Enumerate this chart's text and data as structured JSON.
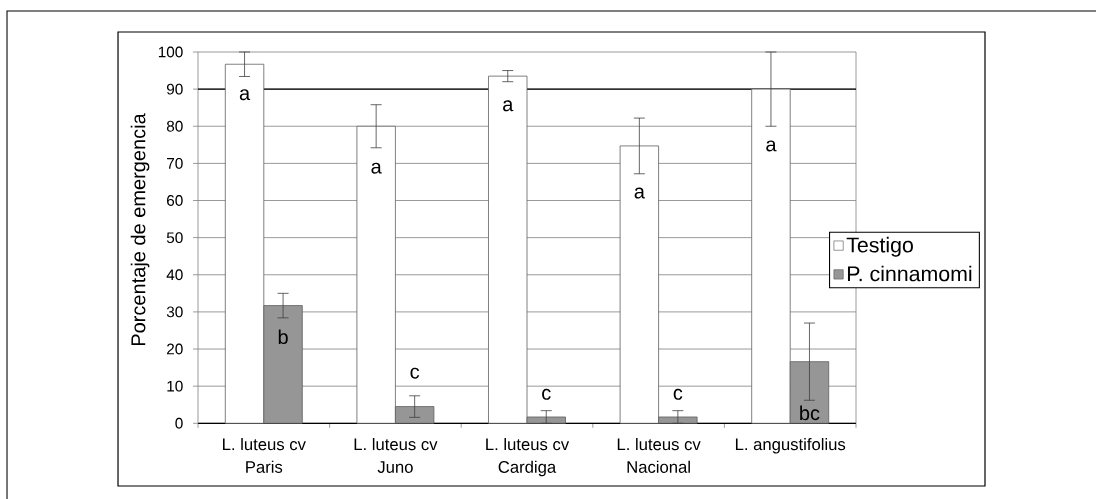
{
  "chart_data": {
    "type": "bar",
    "ylabel": "Porcentaje de emergencia",
    "categories": [
      "L. luteus cv Paris",
      "L. luteus cv Juno",
      "L. luteus cv Cardiga",
      "L. luteus cv Nacional",
      "L. angustifolius"
    ],
    "series": [
      {
        "name": "Testigo",
        "color": "#ffffff",
        "values": [
          96.7,
          80,
          93.5,
          74.7,
          90
        ],
        "errors": [
          3.3,
          5.8,
          1.5,
          7.5,
          10
        ]
      },
      {
        "name": "P. cinnamomi",
        "color": "#969696",
        "values": [
          31.7,
          4.5,
          1.7,
          1.7,
          16.6
        ],
        "errors": [
          3.3,
          2.9,
          1.7,
          1.7,
          10.4
        ]
      }
    ],
    "ylim": [
      0,
      100
    ],
    "yticks": [
      0,
      10,
      20,
      30,
      40,
      50,
      60,
      70,
      80,
      90,
      100
    ],
    "grid": "y",
    "legend": "right",
    "ref_lines": [
      {
        "axis": "y",
        "value": 90,
        "color": "#000000"
      }
    ],
    "annotations": [
      {
        "text": "a",
        "x": "L. luteus cv Paris",
        "y": 88.5
      },
      {
        "text": "b",
        "x": "L. luteus cv Paris",
        "y": 23.3
      },
      {
        "text": "a",
        "x": "L. luteus cv Juno",
        "y": 68.7
      },
      {
        "text": "c",
        "x": "L. luteus cv Juno",
        "y": 13.5
      },
      {
        "text": "a",
        "x": "L. luteus cv Cardiga",
        "y": 85.5
      },
      {
        "text": "c",
        "x": "L. luteus cv Cardiga",
        "y": 7.8
      },
      {
        "text": "a",
        "x": "L. luteus cv Nacional",
        "y": 62
      },
      {
        "text": "c",
        "x": "L. luteus cv Nacional",
        "y": 7.8
      },
      {
        "text": "a",
        "x": "L. angustifolius",
        "y": 74.7
      },
      {
        "text": "bc",
        "x": "L. angustifolius",
        "y": 2.8
      }
    ]
  }
}
